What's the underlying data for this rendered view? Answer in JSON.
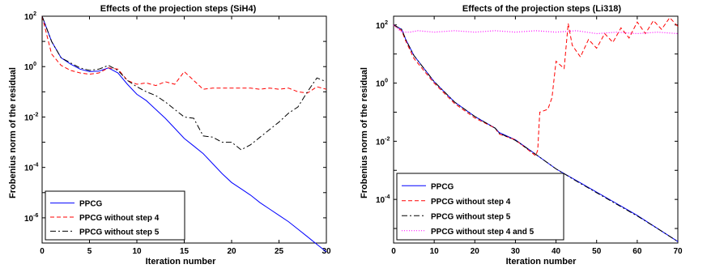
{
  "chart_data": [
    {
      "type": "line",
      "title": "Effects of the projection steps (SiH4)",
      "xlabel": "Iteration number",
      "ylabel": "Frobenius norm of the residual",
      "xlim": [
        0,
        30
      ],
      "ylim_log10": [
        -7,
        2
      ],
      "yscale": "log",
      "xticks": [
        0,
        5,
        10,
        15,
        20,
        25,
        30
      ],
      "yticks_exp": [
        -6,
        -4,
        -2,
        0,
        2
      ],
      "legend_position": "bottom-left",
      "grid": false,
      "series": [
        {
          "name": "PPCG",
          "color": "#0000ff",
          "dash": "solid",
          "x": [
            0,
            1,
            2,
            3,
            4,
            5,
            6,
            7,
            8,
            9,
            10,
            11,
            12,
            13,
            14,
            15,
            16,
            17,
            18,
            19,
            20,
            21,
            22,
            23,
            24,
            25,
            26,
            27,
            28,
            29,
            30
          ],
          "log10y": [
            2.0,
            1.0,
            0.35,
            0.1,
            -0.1,
            -0.2,
            -0.18,
            -0.05,
            -0.25,
            -0.7,
            -1.1,
            -1.35,
            -1.7,
            -2.05,
            -2.45,
            -2.85,
            -3.15,
            -3.45,
            -3.85,
            -4.25,
            -4.6,
            -4.85,
            -5.1,
            -5.4,
            -5.65,
            -5.9,
            -6.15,
            -6.45,
            -6.75,
            -7.05,
            -7.35
          ]
        },
        {
          "name": "PPCG without step 4",
          "color": "#ff0000",
          "dash": "5,3",
          "x": [
            0,
            1,
            2,
            3,
            4,
            5,
            6,
            7,
            8,
            9,
            10,
            11,
            12,
            13,
            14,
            15,
            16,
            17,
            18,
            19,
            20,
            21,
            22,
            23,
            24,
            25,
            26,
            27,
            28,
            29,
            30
          ],
          "log10y": [
            2.0,
            0.5,
            0.05,
            -0.15,
            -0.25,
            -0.3,
            -0.25,
            -0.05,
            -0.1,
            -0.55,
            -0.7,
            -0.65,
            -0.75,
            -0.6,
            -0.7,
            -0.2,
            -0.55,
            -0.9,
            -0.85,
            -0.85,
            -0.85,
            -0.85,
            -0.85,
            -0.9,
            -0.85,
            -0.9,
            -0.85,
            -1.0,
            -1.05,
            -0.8,
            -0.9
          ]
        },
        {
          "name": "PPCG without step 5",
          "color": "#000000",
          "dash": "7,3,2,3",
          "x": [
            0,
            1,
            2,
            3,
            4,
            5,
            6,
            7,
            8,
            9,
            10,
            11,
            12,
            13,
            14,
            15,
            16,
            17,
            18,
            19,
            20,
            21,
            22,
            23,
            24,
            25,
            26,
            27,
            28,
            29,
            30
          ],
          "log10y": [
            2.0,
            1.0,
            0.35,
            0.15,
            -0.05,
            -0.15,
            -0.1,
            0.05,
            -0.15,
            -0.55,
            -0.8,
            -1.0,
            -1.15,
            -1.4,
            -1.7,
            -2.0,
            -2.05,
            -2.75,
            -2.8,
            -3.0,
            -3.0,
            -3.3,
            -3.1,
            -2.8,
            -2.5,
            -2.2,
            -1.85,
            -1.6,
            -1.0,
            -0.45,
            -0.6
          ]
        }
      ]
    },
    {
      "type": "line",
      "title": "Effects of the projection steps (Li318)",
      "xlabel": "Iteration number",
      "ylabel": "Frobenius norm of the residual",
      "xlim": [
        0,
        70
      ],
      "ylim_log10": [
        -5.5,
        2.3
      ],
      "yscale": "log",
      "xticks": [
        0,
        10,
        20,
        30,
        40,
        50,
        60,
        70
      ],
      "yticks_exp": [
        -4,
        -2,
        0,
        2
      ],
      "legend_position": "bottom-left",
      "grid": false,
      "series": [
        {
          "name": "PPCG",
          "color": "#0000ff",
          "dash": "solid",
          "x": [
            0,
            2,
            3,
            5,
            10,
            15,
            20,
            25,
            26,
            30,
            35,
            40,
            45,
            50,
            55,
            60,
            65,
            70
          ],
          "log10y": [
            2.0,
            1.85,
            1.5,
            0.95,
            0.05,
            -0.65,
            -1.15,
            -1.55,
            -1.7,
            -1.95,
            -2.45,
            -2.95,
            -3.35,
            -3.75,
            -4.15,
            -4.55,
            -5.0,
            -5.45
          ]
        },
        {
          "name": "PPCG without step 4",
          "color": "#ff0000",
          "dash": "5,3",
          "x": [
            0,
            2,
            3,
            5,
            10,
            15,
            20,
            25,
            26,
            30,
            35,
            35.5,
            36,
            38,
            39,
            40,
            42,
            43,
            44,
            46,
            48,
            50,
            52,
            54,
            56,
            58,
            60,
            62,
            64,
            66,
            68,
            70
          ],
          "log10y": [
            2.0,
            1.8,
            1.45,
            0.85,
            0.0,
            -0.7,
            -1.2,
            -1.55,
            -1.75,
            -1.95,
            -2.5,
            -2.3,
            -1.0,
            -0.9,
            -0.5,
            0.75,
            0.5,
            2.05,
            1.3,
            0.9,
            1.5,
            1.2,
            1.7,
            1.4,
            1.9,
            1.55,
            2.1,
            1.7,
            2.15,
            1.85,
            2.25,
            1.95
          ]
        },
        {
          "name": "PPCG without step 5",
          "color": "#000000",
          "dash": "7,3,2,3",
          "x": [
            0,
            2,
            3,
            5,
            10,
            15,
            20,
            25,
            26,
            30,
            35,
            40,
            45,
            50,
            55,
            60,
            65,
            70
          ],
          "log10y": [
            2.0,
            1.85,
            1.5,
            0.95,
            0.05,
            -0.65,
            -1.15,
            -1.55,
            -1.72,
            -1.97,
            -2.45,
            -2.95,
            -3.37,
            -3.77,
            -4.17,
            -4.57,
            -5.0,
            -5.45
          ]
        },
        {
          "name": "PPCG without step 4 and 5",
          "color": "#ff00ff",
          "dash": "1,2",
          "x": [
            0,
            2,
            4,
            6,
            10,
            15,
            20,
            25,
            30,
            35,
            40,
            45,
            50,
            55,
            60,
            65,
            70
          ],
          "log10y": [
            2.0,
            1.75,
            1.75,
            1.8,
            1.75,
            1.8,
            1.75,
            1.8,
            1.75,
            1.8,
            1.75,
            1.8,
            1.7,
            1.75,
            1.7,
            1.75,
            1.7
          ]
        }
      ]
    }
  ]
}
